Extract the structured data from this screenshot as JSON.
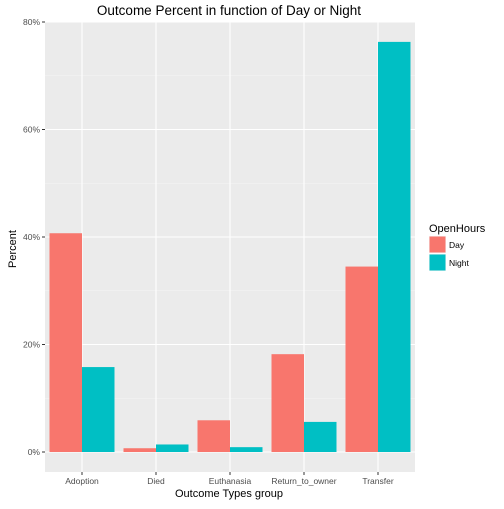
{
  "chart_data": {
    "type": "bar",
    "title": "Outcome Percent in function of Day or Night",
    "xlabel": "Outcome Types group",
    "ylabel": "Percent",
    "categories": [
      "Adoption",
      "Died",
      "Euthanasia",
      "Return_to_owner",
      "Transfer"
    ],
    "series": [
      {
        "name": "Day",
        "color": "#F8766D",
        "values": [
          40.7,
          0.7,
          5.9,
          18.2,
          34.5
        ]
      },
      {
        "name": "Night",
        "color": "#00BFC4",
        "values": [
          15.8,
          1.4,
          0.9,
          5.6,
          76.3
        ]
      }
    ],
    "ylim": [
      0,
      80
    ],
    "y_ticks": [
      0,
      20,
      40,
      60,
      80
    ],
    "y_tick_labels": [
      "0%",
      "20%",
      "40%",
      "60%",
      "80%"
    ],
    "legend": {
      "title": "OpenHours",
      "position": "right"
    },
    "grid": true,
    "panel_background": "#EBEBEB"
  }
}
